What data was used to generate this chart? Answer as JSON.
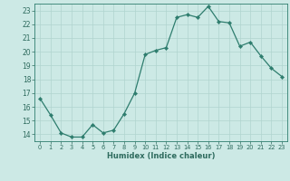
{
  "x": [
    0,
    1,
    2,
    3,
    4,
    5,
    6,
    7,
    8,
    9,
    10,
    11,
    12,
    13,
    14,
    15,
    16,
    17,
    18,
    19,
    20,
    21,
    22,
    23
  ],
  "y": [
    16.6,
    15.4,
    14.1,
    13.8,
    13.8,
    14.7,
    14.1,
    14.3,
    15.5,
    17.0,
    19.8,
    20.1,
    20.3,
    22.5,
    22.7,
    22.5,
    23.3,
    22.2,
    22.1,
    20.4,
    20.7,
    19.7,
    18.8,
    18.2
  ],
  "xlabel": "Humidex (Indice chaleur)",
  "ylim": [
    13.5,
    23.5
  ],
  "xlim": [
    -0.5,
    23.5
  ],
  "yticks": [
    14,
    15,
    16,
    17,
    18,
    19,
    20,
    21,
    22,
    23
  ],
  "xticks": [
    0,
    1,
    2,
    3,
    4,
    5,
    6,
    7,
    8,
    9,
    10,
    11,
    12,
    13,
    14,
    15,
    16,
    17,
    18,
    19,
    20,
    21,
    22,
    23
  ],
  "line_color": "#2e7d6e",
  "marker_color": "#2e7d6e",
  "bg_color": "#cce9e5",
  "grid_color": "#b0d4cf",
  "tick_label_color": "#2e6b5e",
  "xlabel_color": "#2e6b5e",
  "spine_color": "#2e7d6e"
}
